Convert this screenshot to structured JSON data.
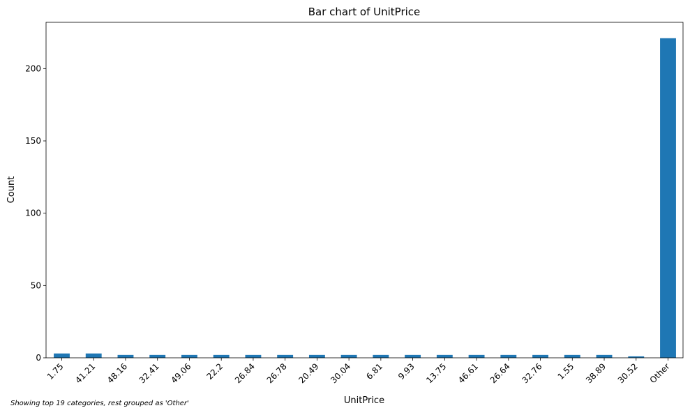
{
  "chart_data": {
    "type": "bar",
    "title": "Bar chart of UnitPrice",
    "xlabel": "UnitPrice",
    "ylabel": "Count",
    "categories": [
      "1.75",
      "41.21",
      "48.16",
      "32.41",
      "49.06",
      "22.2",
      "26.84",
      "26.78",
      "20.49",
      "30.04",
      "6.81",
      "9.93",
      "13.75",
      "46.61",
      "26.64",
      "32.76",
      "1.55",
      "38.89",
      "30.52",
      "Other"
    ],
    "values": [
      3,
      3,
      2,
      2,
      2,
      2,
      2,
      2,
      2,
      2,
      2,
      2,
      2,
      2,
      2,
      2,
      2,
      2,
      1,
      221
    ],
    "ylim": [
      0,
      232
    ],
    "yticks": [
      0,
      50,
      100,
      150,
      200
    ],
    "grid": false,
    "bar_color": "#1f77b4"
  },
  "footnote": "Showing top 19 categories, rest grouped as 'Other'"
}
